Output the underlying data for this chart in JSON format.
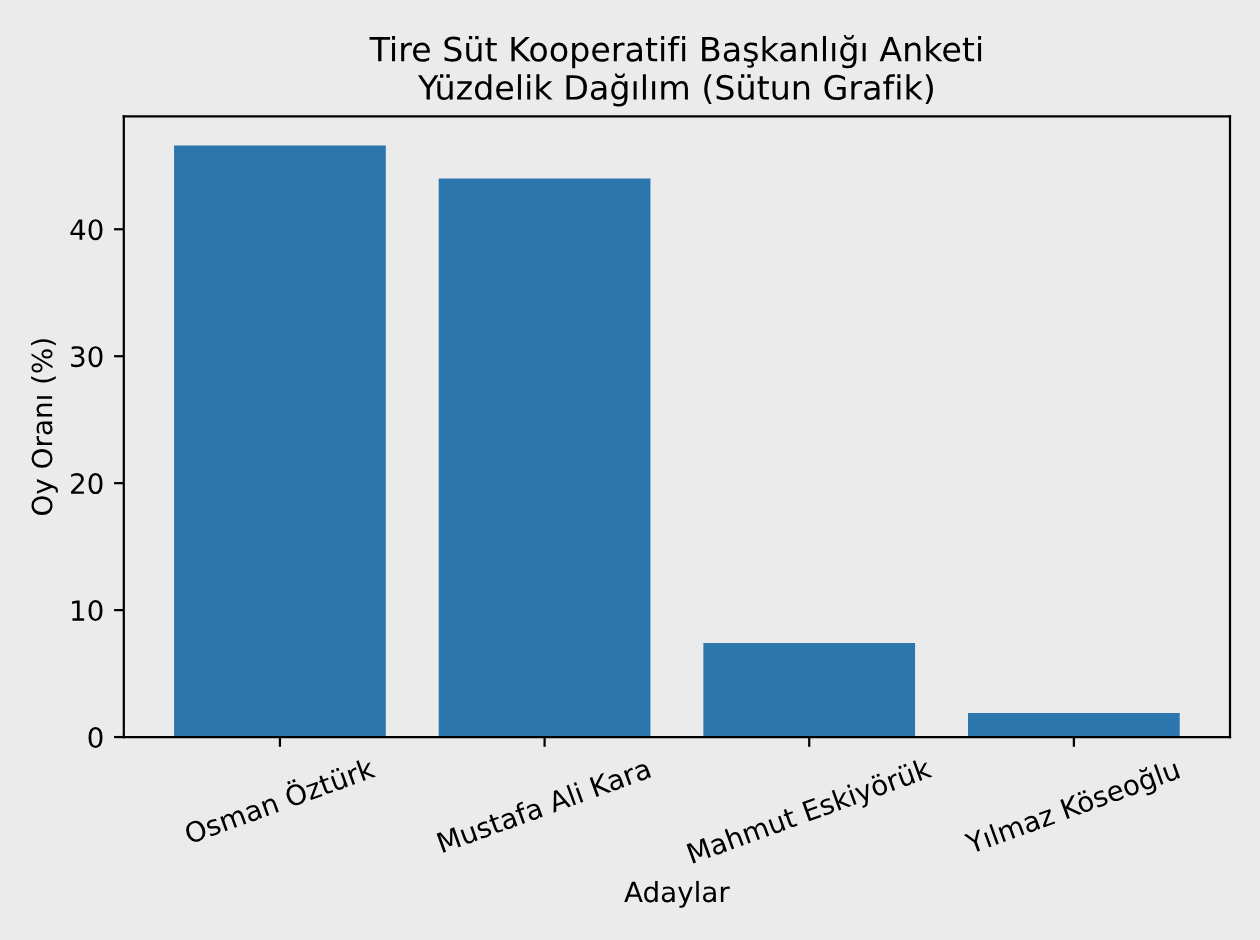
{
  "chart_data": {
    "type": "bar",
    "title": "Tire Süt Kooperatifi Başkanlığı Anketi\nYüzdelik Dağılım (Sütun Grafik)",
    "xlabel": "Adaylar",
    "ylabel": "Oy Oranı (%)",
    "categories": [
      "Osman Öztürk",
      "Mustafa Ali Kara",
      "Mahmut Eskiyörük",
      "Yılmaz Köseoğlu"
    ],
    "values": [
      46.6,
      44.0,
      7.4,
      1.9
    ],
    "color": "#2a76ad",
    "ylim": [
      0,
      48.9
    ],
    "yticks": [
      0,
      10,
      20,
      30,
      40
    ],
    "grid": false,
    "legend": false
  }
}
